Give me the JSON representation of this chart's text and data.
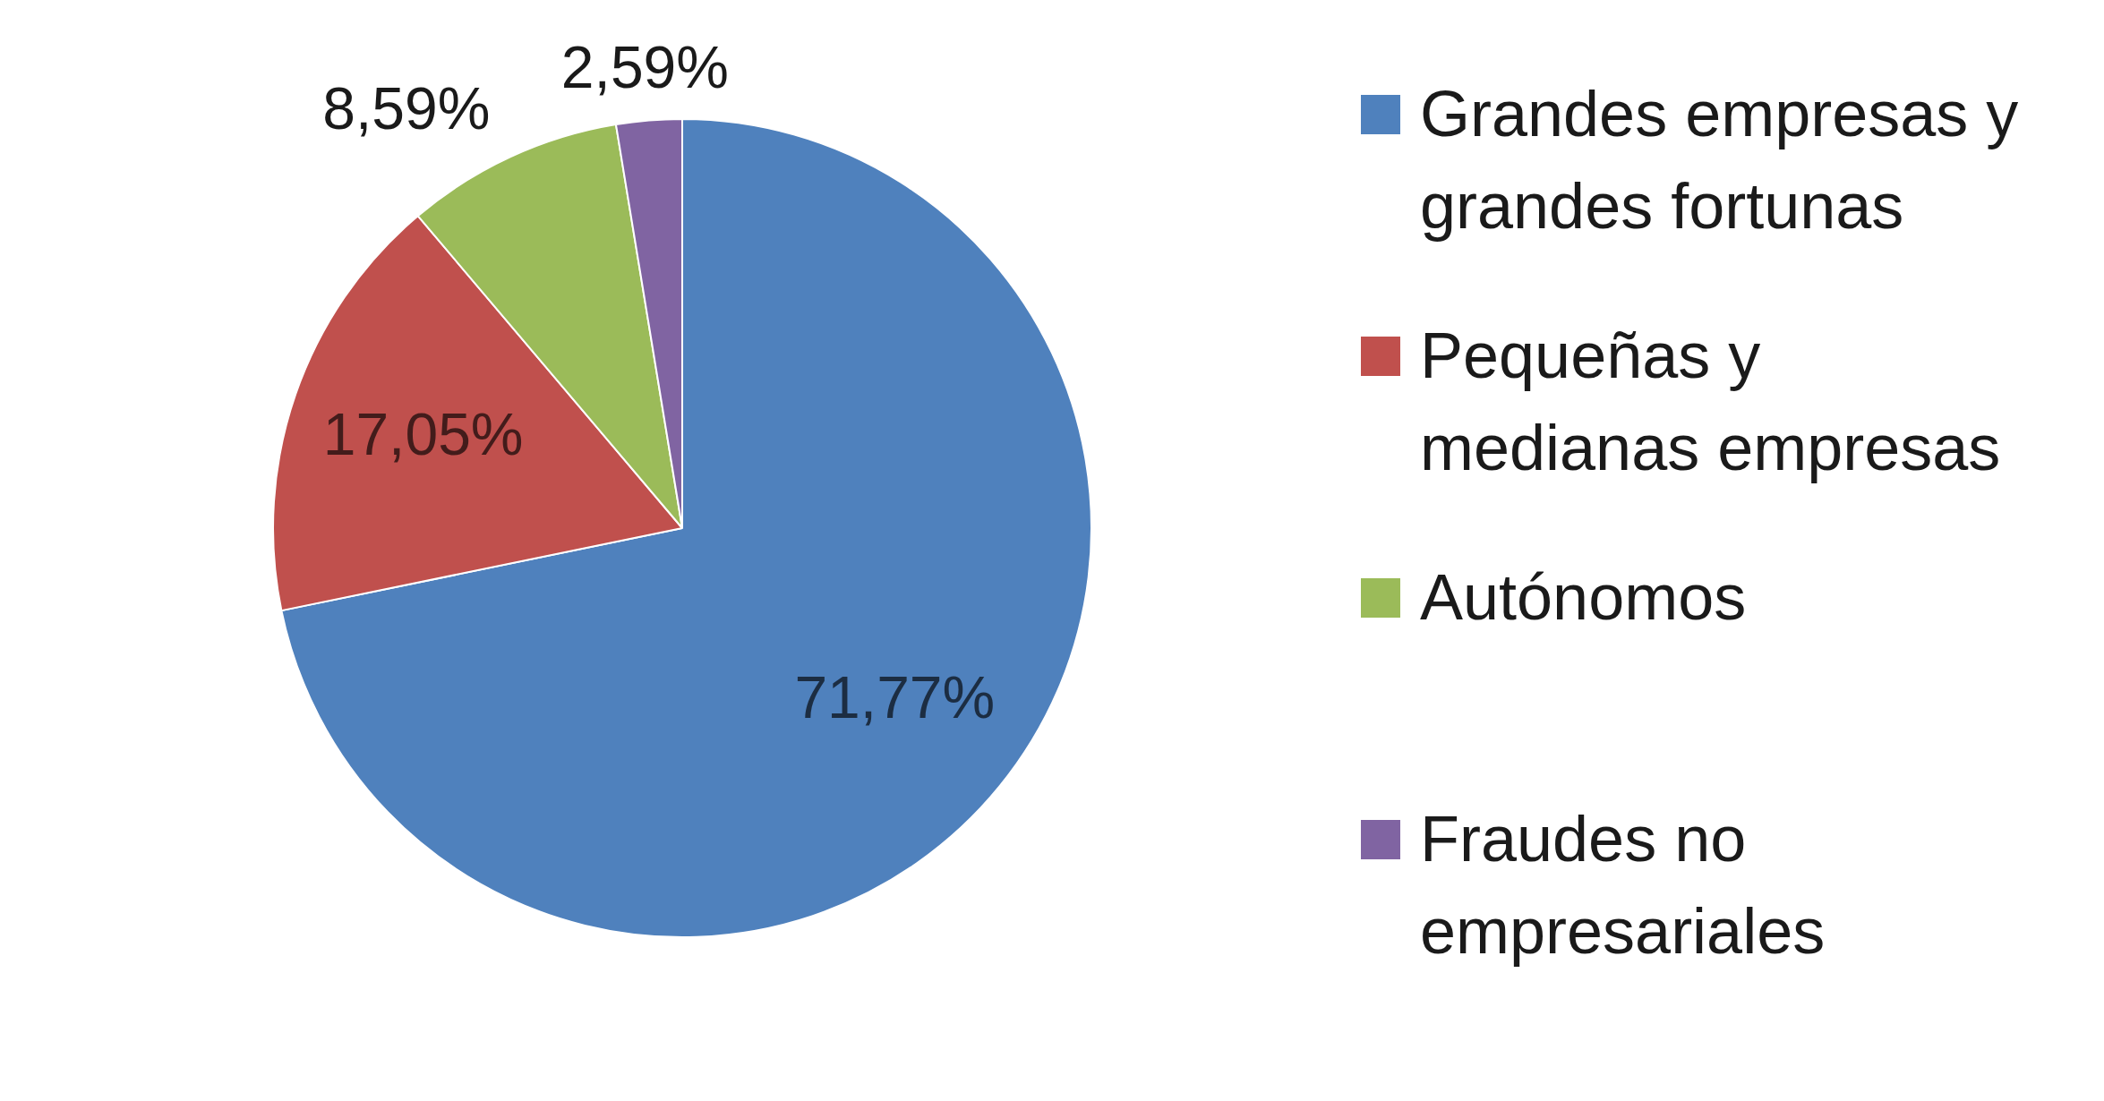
{
  "chart_data": {
    "type": "pie",
    "categories": [
      "Grandes empresas y grandes fortunas",
      "Pequeñas y medianas empresas",
      "Autónomos",
      "Fraudes no empresariales"
    ],
    "values": [
      71.77,
      17.05,
      8.59,
      2.59
    ],
    "colors": [
      "#4f81bd",
      "#c0504d",
      "#9bbb59",
      "#8064a2"
    ],
    "value_labels": [
      "71,77%",
      "17,05%",
      "8,59%",
      "2,59%"
    ],
    "legend": "right"
  }
}
